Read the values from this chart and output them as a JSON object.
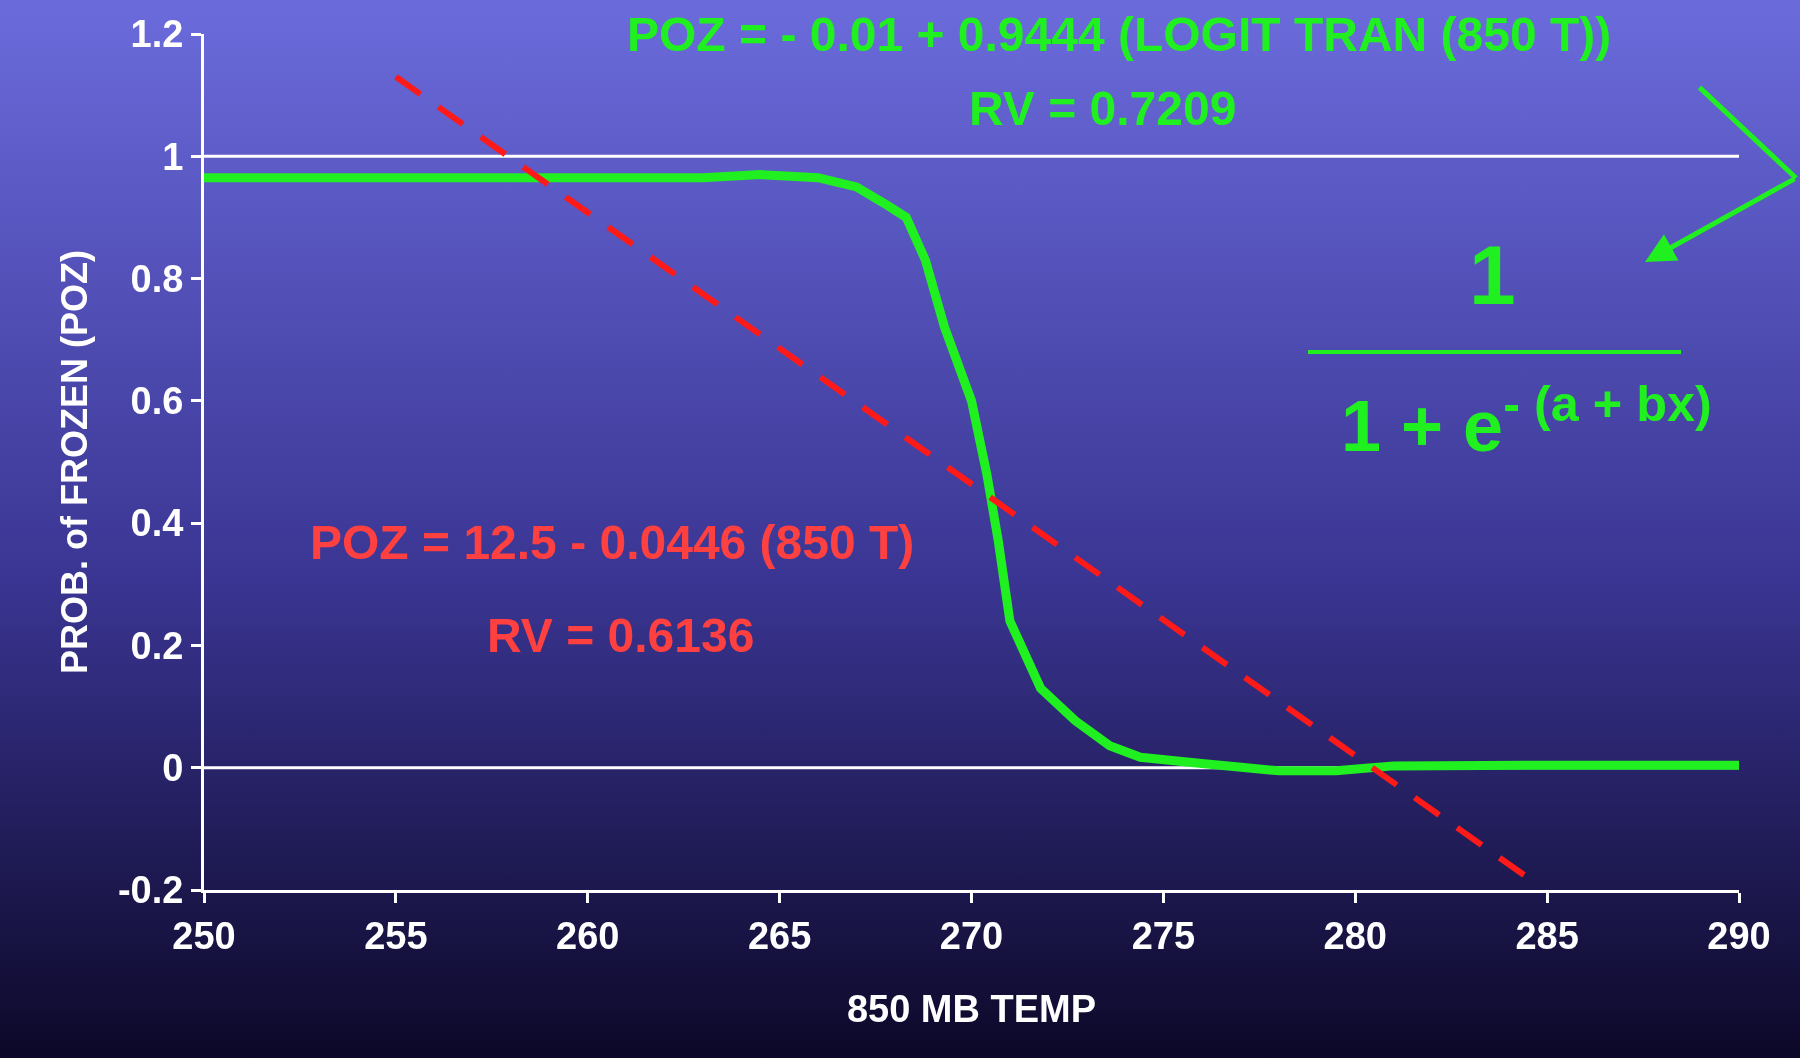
{
  "chart_data": {
    "type": "line",
    "xlabel": "850 MB TEMP",
    "ylabel": "PROB. of FROZEN (POZ)",
    "xlim": [
      250,
      290
    ],
    "ylim": [
      -0.2,
      1.2
    ],
    "xticks": [
      250,
      255,
      260,
      265,
      270,
      275,
      280,
      285,
      290
    ],
    "yticks": [
      -0.2,
      0,
      0.2,
      0.4,
      0.6,
      0.8,
      1,
      1.2
    ],
    "grid": false,
    "marker": "none",
    "series": [
      {
        "color": "#20f020",
        "line_style": "solid",
        "x": [
          250,
          255,
          260,
          263,
          264.5,
          266,
          267,
          267.8,
          268.3,
          268.8,
          269.3,
          270,
          270.4,
          270.7,
          271,
          271.8,
          272.7,
          273.6,
          274.4,
          276,
          278,
          279.5,
          281,
          285,
          290
        ],
        "values": [
          0.965,
          0.965,
          0.965,
          0.965,
          0.97,
          0.965,
          0.95,
          0.92,
          0.9,
          0.83,
          0.72,
          0.6,
          0.48,
          0.37,
          0.24,
          0.13,
          0.077,
          0.036,
          0.017,
          0.007,
          -0.005,
          -0.005,
          0.003,
          0.004,
          0.004
        ]
      },
      {
        "color": "#ff1a1a",
        "line_style": "dashed",
        "x": [
          255,
          284.5
        ],
        "values": [
          1.13,
          -0.18
        ]
      }
    ],
    "ref_lines": [
      {
        "axis": "y",
        "value": 0,
        "color": "#ffffff"
      },
      {
        "axis": "y",
        "value": 1,
        "color": "#ffffff"
      }
    ],
    "annotations": [
      "POZ = - 0.01 + 0.9444 (LOGIT TRAN (850 T))",
      "RV = 0.7209",
      "POZ = 12.5 - 0.0446 (850 T)",
      "RV = 0.6136",
      "1",
      "1 + e$^{- (a + bx)}$"
    ]
  }
}
